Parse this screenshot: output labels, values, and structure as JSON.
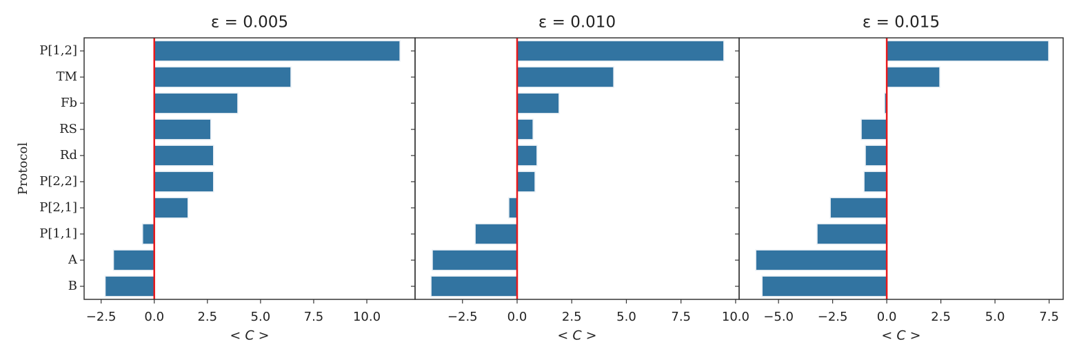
{
  "chart_data": [
    {
      "type": "barh",
      "title": "ε = 0.005",
      "xlabel": "< C >",
      "ylabel": "Protocol",
      "categories": [
        "P[1,2]",
        "TM",
        "Fb",
        "RS",
        "Rd",
        "P[2,2]",
        "P[2,1]",
        "P[1,1]",
        "A",
        "B"
      ],
      "values": [
        11.56,
        6.43,
        3.93,
        2.66,
        2.79,
        2.79,
        1.59,
        -0.55,
        -1.92,
        -2.31
      ],
      "color": "#3274a1",
      "vline": 0,
      "vline_color": "#e8191c",
      "xlim": [
        -3.3,
        12.27
      ],
      "xticks": [
        {
          "value": -2.5,
          "label": "−2.5"
        },
        {
          "value": 0,
          "label": "0.0"
        },
        {
          "value": 2.5,
          "label": "2.5"
        },
        {
          "value": 5,
          "label": "5.0"
        },
        {
          "value": 7.5,
          "label": "7.5"
        },
        {
          "value": 10,
          "label": "10.0"
        }
      ]
    },
    {
      "type": "barh",
      "title": "ε = 0.010",
      "xlabel": "< C >",
      "values": [
        9.46,
        4.42,
        1.92,
        0.73,
        0.91,
        0.82,
        -0.38,
        -1.92,
        -3.88,
        -3.94
      ],
      "color": "#3274a1",
      "vline": 0,
      "vline_color": "#e8191c",
      "xlim": [
        -4.67,
        10.16
      ],
      "xticks": [
        {
          "value": -2.5,
          "label": "−2.5"
        },
        {
          "value": 0,
          "label": "0.0"
        },
        {
          "value": 2.5,
          "label": "2.5"
        },
        {
          "value": 5,
          "label": "5.0"
        },
        {
          "value": 7.5,
          "label": "7.5"
        },
        {
          "value": 10,
          "label": "10.0"
        }
      ]
    },
    {
      "type": "barh",
      "title": "ε = 0.015",
      "xlabel": "< C >",
      "values": [
        7.48,
        2.45,
        -0.1,
        -1.18,
        -0.99,
        -1.05,
        -2.61,
        -3.22,
        -6.05,
        -5.76
      ],
      "color": "#3274a1",
      "vline": 0,
      "vline_color": "#e8191c",
      "xlim": [
        -6.82,
        8.15
      ],
      "xticks": [
        {
          "value": -5,
          "label": "−5.0"
        },
        {
          "value": -2.5,
          "label": "−2.5"
        },
        {
          "value": 0,
          "label": "0.0"
        },
        {
          "value": 2.5,
          "label": "2.5"
        },
        {
          "value": 5,
          "label": "5.0"
        },
        {
          "value": 7.5,
          "label": "7.5"
        }
      ]
    }
  ]
}
